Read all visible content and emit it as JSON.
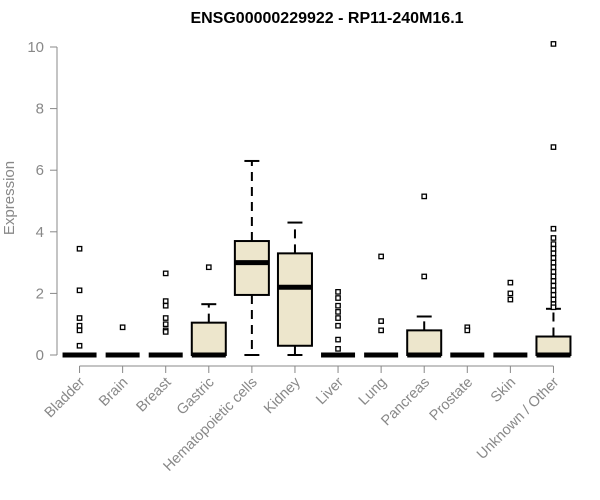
{
  "chart_data": {
    "type": "box",
    "title": "ENSG00000229922 - RP11-240M16.1",
    "ylabel": "Expression",
    "xlabel": "",
    "ylim": [
      0,
      10
    ],
    "yticks": [
      "0",
      "2",
      "4",
      "6",
      "8",
      "10"
    ],
    "grid": false,
    "colors": {
      "box_fill": "#ede6cc",
      "stroke": "#000000",
      "axis": "#888888"
    },
    "categories": [
      "Bladder",
      "Brain",
      "Breast",
      "Gastric",
      "Hematopoietic cells",
      "Kidney",
      "Liver",
      "Lung",
      "Pancreas",
      "Prostate",
      "Skin",
      "Unknown / Other"
    ],
    "boxes": [
      {
        "category": "Bladder",
        "whisker_low": 0,
        "q1": 0,
        "median": 0,
        "q3": 0,
        "whisker_high": 0,
        "outliers": [
          3.45,
          2.1,
          1.2,
          0.95,
          0.8,
          0.3
        ]
      },
      {
        "category": "Brain",
        "whisker_low": 0,
        "q1": 0,
        "median": 0,
        "q3": 0,
        "whisker_high": 0,
        "outliers": [
          0.9
        ]
      },
      {
        "category": "Breast",
        "whisker_low": 0,
        "q1": 0,
        "median": 0,
        "q3": 0,
        "whisker_high": 0,
        "outliers": [
          2.65,
          1.75,
          1.6,
          1.2,
          1.0,
          0.8,
          0.75
        ]
      },
      {
        "category": "Gastric",
        "whisker_low": 0,
        "q1": 0,
        "median": 0,
        "q3": 1.05,
        "whisker_high": 1.65,
        "outliers": [
          2.85
        ]
      },
      {
        "category": "Hematopoietic cells",
        "whisker_low": 0,
        "q1": 1.95,
        "median": 3.0,
        "q3": 3.7,
        "whisker_high": 6.3,
        "outliers": []
      },
      {
        "category": "Kidney",
        "whisker_low": 0,
        "q1": 0.3,
        "median": 2.2,
        "q3": 3.3,
        "whisker_high": 4.3,
        "outliers": []
      },
      {
        "category": "Liver",
        "whisker_low": 0,
        "q1": 0,
        "median": 0,
        "q3": 0,
        "whisker_high": 0,
        "outliers": [
          2.05,
          1.85,
          1.6,
          1.4,
          1.2,
          0.95,
          0.5,
          0.2
        ]
      },
      {
        "category": "Lung",
        "whisker_low": 0,
        "q1": 0,
        "median": 0,
        "q3": 0,
        "whisker_high": 0,
        "outliers": [
          3.2,
          1.1,
          0.8
        ]
      },
      {
        "category": "Pancreas",
        "whisker_low": 0,
        "q1": 0,
        "median": 0,
        "q3": 0.8,
        "whisker_high": 1.25,
        "outliers": [
          5.15,
          2.55
        ]
      },
      {
        "category": "Prostate",
        "whisker_low": 0,
        "q1": 0,
        "median": 0,
        "q3": 0,
        "whisker_high": 0,
        "outliers": [
          0.9,
          0.8
        ]
      },
      {
        "category": "Skin",
        "whisker_low": 0,
        "q1": 0,
        "median": 0,
        "q3": 0,
        "whisker_high": 0,
        "outliers": [
          2.35,
          2.0,
          1.8
        ]
      },
      {
        "category": "Unknown / Other",
        "whisker_low": 0,
        "q1": 0,
        "median": 0,
        "q3": 0.6,
        "whisker_high": 1.5,
        "outliers": [
          10.1,
          6.75,
          4.1,
          3.8,
          3.6,
          3.45,
          3.3,
          3.15,
          3.0,
          2.85,
          2.7,
          2.55,
          2.4,
          2.25,
          2.1,
          1.95,
          1.8,
          1.65,
          1.55
        ]
      }
    ]
  }
}
